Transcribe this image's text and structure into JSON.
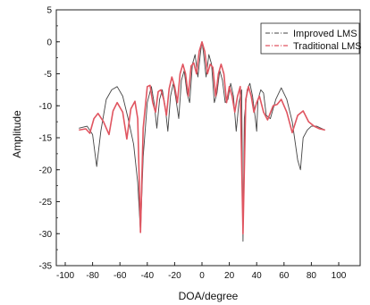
{
  "chart_data": {
    "type": "line",
    "xlabel": "DOA/degree",
    "ylabel": "Amplitude",
    "xlim": [
      -100,
      100
    ],
    "ylim": [
      -35,
      5
    ],
    "x_ticks": [
      -100,
      -80,
      -60,
      -40,
      -20,
      0,
      20,
      40,
      60,
      80,
      100
    ],
    "y_ticks": [
      5,
      0,
      -5,
      -10,
      -15,
      -20,
      -25,
      -30,
      -35
    ],
    "legend_position": "top-right",
    "grid": false,
    "series": [
      {
        "name": "Improved LMS",
        "color": "#444444",
        "style": "dash-dot",
        "x": [
          -90,
          -84,
          -80,
          -77,
          -74,
          -70,
          -66,
          -62,
          -58,
          -54,
          -50,
          -47,
          -45,
          -43,
          -40,
          -37,
          -35,
          -33,
          -31,
          -29,
          -27,
          -25,
          -23,
          -21,
          -19,
          -17,
          -15,
          -13,
          -11,
          -9,
          -7,
          -5,
          -3,
          -1,
          0,
          1,
          3,
          5,
          7,
          9,
          11,
          13,
          15,
          17,
          19,
          21,
          23,
          25,
          27,
          29,
          30,
          31,
          33,
          35,
          37,
          39,
          40,
          41,
          43,
          45,
          47,
          50,
          54,
          58,
          62,
          66,
          70,
          72,
          74,
          77,
          80,
          84,
          90
        ],
        "y": [
          -13.5,
          -13.2,
          -14.5,
          -19.5,
          -14,
          -9,
          -7.5,
          -7,
          -8.5,
          -12,
          -16,
          -22,
          -29.8,
          -18,
          -9.5,
          -7,
          -9.5,
          -13.5,
          -9,
          -7.5,
          -10,
          -14,
          -8.5,
          -6.5,
          -9,
          -12,
          -6,
          -4.5,
          -8,
          -9.5,
          -3.5,
          -2,
          -5.5,
          -1.5,
          0,
          -1.5,
          -5.5,
          -2,
          -3.5,
          -9.5,
          -8,
          -4.5,
          -6,
          -9.5,
          -9,
          -6.5,
          -8.5,
          -14,
          -9.5,
          -7.5,
          -31.2,
          -12,
          -7.5,
          -6.5,
          -8.5,
          -12,
          -14,
          -9,
          -7.5,
          -8,
          -11.5,
          -12,
          -9,
          -7.2,
          -9,
          -12.5,
          -18.5,
          -20,
          -15,
          -13.8,
          -13.2,
          -13.2,
          -13.8
        ]
      },
      {
        "name": "Traditional LMS",
        "color": "#e05560",
        "style": "dash-dot",
        "x": [
          -90,
          -85,
          -82,
          -79,
          -76,
          -72,
          -68,
          -65,
          -62,
          -58,
          -55,
          -52,
          -49,
          -47,
          -45,
          -43,
          -40,
          -38,
          -36,
          -34,
          -32,
          -30,
          -28,
          -26,
          -24,
          -22,
          -20,
          -18,
          -16,
          -14,
          -12,
          -10,
          -8,
          -6,
          -4,
          -2,
          0,
          2,
          4,
          6,
          8,
          10,
          12,
          14,
          16,
          18,
          20,
          22,
          24,
          26,
          28,
          30,
          32,
          34,
          36,
          38,
          40,
          42,
          45,
          48,
          52,
          55,
          58,
          62,
          66,
          70,
          74,
          78,
          82,
          86,
          90
        ],
        "y": [
          -13.8,
          -13.6,
          -14.3,
          -12,
          -11.2,
          -12.5,
          -14.5,
          -10.8,
          -9.5,
          -11,
          -15.2,
          -10.5,
          -9.3,
          -12,
          -29.8,
          -13.5,
          -7,
          -6.8,
          -9.5,
          -11,
          -7.8,
          -7.5,
          -9,
          -11.5,
          -7.3,
          -5.5,
          -7,
          -9.5,
          -5,
          -3.5,
          -5,
          -8.5,
          -3.8,
          -3.3,
          -5,
          -1.5,
          0,
          -1.5,
          -5,
          -3.5,
          -4,
          -8.5,
          -5,
          -3.5,
          -5,
          -9.5,
          -7,
          -8.5,
          -11,
          -8.5,
          -7,
          -30,
          -9,
          -7,
          -8.5,
          -11,
          -9.5,
          -8.5,
          -11,
          -12.2,
          -10,
          -9.8,
          -9,
          -11,
          -14.2,
          -11.5,
          -10.8,
          -12.5,
          -13.2,
          -13.6,
          -13.8
        ]
      }
    ]
  }
}
